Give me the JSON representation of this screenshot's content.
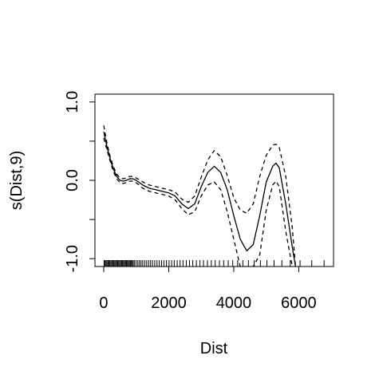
{
  "chart_data": {
    "type": "line",
    "xlabel": "Dist",
    "ylabel": "s(Dist,9)",
    "xlim": [
      -270,
      7070
    ],
    "ylim": [
      -1.1,
      1.1
    ],
    "xticks": [
      0,
      2000,
      4000,
      6000
    ],
    "xtick_labels": [
      "0",
      "2000",
      "4000",
      "6000"
    ],
    "yticks": [
      -1.0,
      -0.5,
      0.0,
      0.5,
      1.0
    ],
    "ytick_labels": [
      "-1.0",
      "",
      "0.0",
      "",
      "1.0"
    ],
    "grid": false,
    "series": [
      {
        "style": "solid",
        "x": [
          0,
          100,
          200,
          300,
          400,
          500,
          600,
          700,
          800,
          900,
          1000,
          1200,
          1400,
          1600,
          1800,
          2000,
          2200,
          2400,
          2600,
          2800,
          3000,
          3200,
          3400,
          3600,
          3800,
          4000,
          4200,
          4400,
          4600,
          4800,
          5000,
          5200,
          5300,
          5400,
          5600,
          5800,
          5900
        ],
        "y": [
          0.62,
          0.43,
          0.27,
          0.14,
          0.05,
          0.0,
          -0.01,
          0.0,
          0.02,
          0.02,
          0.0,
          -0.06,
          -0.1,
          -0.12,
          -0.14,
          -0.16,
          -0.2,
          -0.3,
          -0.36,
          -0.3,
          -0.08,
          0.1,
          0.18,
          0.1,
          -0.12,
          -0.45,
          -0.75,
          -0.9,
          -0.82,
          -0.45,
          -0.02,
          0.18,
          0.22,
          0.16,
          -0.3,
          -0.85,
          -1.1
        ]
      },
      {
        "style": "dashed",
        "x": [
          0,
          100,
          200,
          300,
          400,
          500,
          600,
          700,
          800,
          900,
          1000,
          1200,
          1400,
          1600,
          1800,
          2000,
          2200,
          2400,
          2600,
          2800,
          3000,
          3200,
          3400,
          3600,
          3800,
          4000,
          4200,
          4400,
          4600,
          4800,
          5000,
          5200,
          5300,
          5400,
          5600,
          5800,
          5900
        ],
        "y": [
          0.7,
          0.47,
          0.3,
          0.17,
          0.08,
          0.03,
          0.02,
          0.03,
          0.05,
          0.05,
          0.03,
          -0.02,
          -0.06,
          -0.08,
          -0.1,
          -0.12,
          -0.15,
          -0.24,
          -0.28,
          -0.2,
          0.04,
          0.26,
          0.38,
          0.3,
          0.06,
          -0.22,
          -0.38,
          -0.42,
          -0.3,
          0.05,
          0.32,
          0.45,
          0.46,
          0.42,
          0.05,
          -0.6,
          -1.1
        ]
      },
      {
        "style": "dashed",
        "x": [
          0,
          100,
          200,
          300,
          400,
          500,
          600,
          700,
          800,
          900,
          1000,
          1200,
          1400,
          1600,
          1800,
          2000,
          2200,
          2400,
          2600,
          2800,
          3000,
          3200,
          3400,
          3600,
          3800,
          4000,
          4200,
          4400,
          4600,
          4800,
          5000,
          5200,
          5300,
          5400,
          5600,
          5800,
          5900
        ],
        "y": [
          0.54,
          0.39,
          0.24,
          0.11,
          0.02,
          -0.03,
          -0.04,
          -0.03,
          -0.01,
          -0.01,
          -0.03,
          -0.1,
          -0.14,
          -0.16,
          -0.18,
          -0.2,
          -0.25,
          -0.36,
          -0.44,
          -0.4,
          -0.2,
          -0.06,
          -0.02,
          -0.12,
          -0.4,
          -0.75,
          -1.1,
          -1.1,
          -1.1,
          -0.95,
          -0.38,
          -0.06,
          -0.01,
          -0.08,
          -0.65,
          -1.1,
          -1.1
        ]
      }
    ],
    "rug": [
      10,
      40,
      70,
      100,
      130,
      160,
      190,
      220,
      250,
      280,
      310,
      340,
      370,
      400,
      430,
      460,
      490,
      520,
      550,
      580,
      610,
      640,
      670,
      700,
      730,
      760,
      790,
      820,
      850,
      880,
      910,
      950,
      1000,
      1050,
      1100,
      1150,
      1200,
      1260,
      1320,
      1380,
      1440,
      1500,
      1570,
      1640,
      1710,
      1780,
      1850,
      1930,
      2010,
      2090,
      2170,
      2260,
      2350,
      2440,
      2540,
      2640,
      2740,
      2850,
      2960,
      3070,
      3190,
      3310,
      3430,
      3560,
      3690,
      3830,
      3970,
      4120,
      4280,
      4450,
      4630,
      4820,
      5020,
      5240,
      5480,
      5740,
      6040,
      6400,
      6780
    ]
  }
}
